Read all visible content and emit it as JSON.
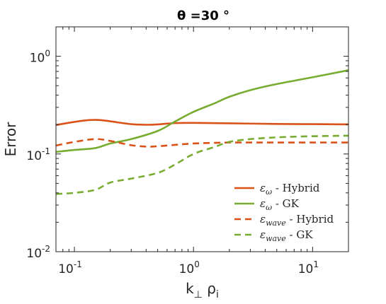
{
  "chart_data": {
    "type": "line",
    "title": "θ =30 °",
    "xlabel": "k⊥ ρi",
    "ylabel": "Error",
    "xscale": "log",
    "yscale": "log",
    "xlim": [
      0.07,
      20
    ],
    "ylim": [
      0.01,
      2
    ],
    "xticks": [
      0.1,
      1,
      10
    ],
    "xtick_labels": [
      [
        "10",
        "-1"
      ],
      [
        "10",
        "0"
      ],
      [
        "10",
        "1"
      ]
    ],
    "yticks": [
      0.01,
      0.1,
      1
    ],
    "ytick_labels": [
      [
        "10",
        "-2"
      ],
      [
        "10",
        "-1"
      ],
      [
        "10",
        "0"
      ]
    ],
    "grid": false,
    "legend_position": "bottom-right",
    "series": [
      {
        "name": "εω - Hybrid",
        "legend": {
          "symbol": "ε",
          "sub": "ω",
          "suffix": " - Hybrid"
        },
        "color": "#D95319",
        "style": "solid",
        "x": [
          0.07,
          0.1,
          0.13,
          0.16,
          0.2,
          0.3,
          0.4,
          0.5,
          0.7,
          1.0,
          2.0,
          5.0,
          10.0,
          20.0
        ],
        "y": [
          0.198,
          0.213,
          0.222,
          0.223,
          0.216,
          0.202,
          0.199,
          0.201,
          0.207,
          0.208,
          0.206,
          0.203,
          0.202,
          0.201
        ]
      },
      {
        "name": "εω - GK",
        "legend": {
          "symbol": "ε",
          "sub": "ω",
          "suffix": " - GK"
        },
        "color": "#77AC30",
        "style": "solid",
        "x": [
          0.07,
          0.1,
          0.15,
          0.2,
          0.3,
          0.5,
          0.7,
          1.0,
          1.5,
          2.0,
          3.0,
          5.0,
          10.0,
          20.0
        ],
        "y": [
          0.105,
          0.11,
          0.115,
          0.128,
          0.142,
          0.172,
          0.215,
          0.27,
          0.33,
          0.385,
          0.45,
          0.52,
          0.61,
          0.72
        ]
      },
      {
        "name": "εwave - Hybrid",
        "legend": {
          "symbol": "ε",
          "sub": "wave",
          "suffix": " - Hybrid"
        },
        "color": "#D95319",
        "style": "dashed",
        "x": [
          0.07,
          0.1,
          0.15,
          0.2,
          0.3,
          0.4,
          0.5,
          0.7,
          1.0,
          1.5,
          2.0,
          3.0,
          5.0,
          10.0,
          20.0
        ],
        "y": [
          0.122,
          0.133,
          0.142,
          0.136,
          0.123,
          0.119,
          0.12,
          0.124,
          0.128,
          0.13,
          0.131,
          0.131,
          0.131,
          0.131,
          0.131
        ]
      },
      {
        "name": "εwave - GK",
        "legend": {
          "symbol": "ε",
          "sub": "wave",
          "suffix": " - GK"
        },
        "color": "#77AC30",
        "style": "dashed",
        "x": [
          0.07,
          0.1,
          0.15,
          0.2,
          0.3,
          0.5,
          0.7,
          1.0,
          1.5,
          2.0,
          3.0,
          5.0,
          10.0,
          20.0
        ],
        "y": [
          0.039,
          0.04,
          0.043,
          0.051,
          0.056,
          0.064,
          0.078,
          0.1,
          0.118,
          0.133,
          0.142,
          0.148,
          0.152,
          0.154
        ]
      }
    ]
  }
}
